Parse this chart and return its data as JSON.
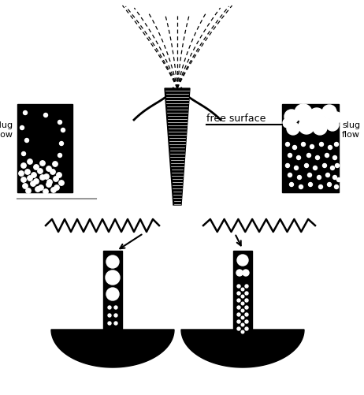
{
  "bg_color": "#ffffff",
  "black": "#000000",
  "white": "#ffffff",
  "gray": "#999999",
  "fig_width": 4.62,
  "fig_height": 5.01,
  "slug_flow_label_left": "slug\nflow",
  "slug_flow_label_right": "slug\nflow",
  "free_surface_label": "free surface"
}
